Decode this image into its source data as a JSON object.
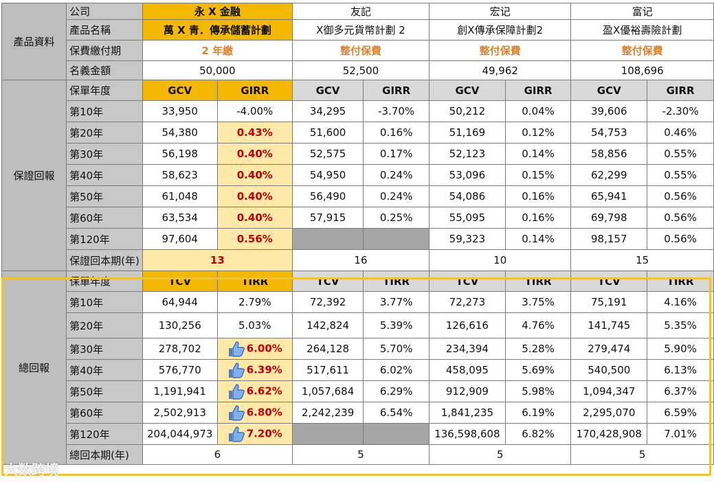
{
  "section_product": "產品資料",
  "section_guaranteed": "保證回報",
  "section_total": "總回報",
  "labels": {
    "company": "公司",
    "product_name": "產品名稱",
    "payment_term": "保費繳付期",
    "notional_amount": "名義金額",
    "policy_year": "保單年度",
    "guaranteed_breakeven": "保證回本期(年)",
    "total_breakeven": "總回本期(年)"
  },
  "companies": [
    {
      "company": "永 X 金融",
      "product": "萬 X 青．傳承儲蓄計劃",
      "payment": "2 年繳",
      "notional": "50,000",
      "g_breakeven": "13",
      "t_breakeven": "6"
    },
    {
      "company": "友記",
      "product": "X御多元貨幣計劃 2",
      "payment": "整付保費",
      "notional": "52,500",
      "g_breakeven": "16",
      "t_breakeven": "5"
    },
    {
      "company": "宏记",
      "product": "創X傳承保障計劃2",
      "payment": "整付保費",
      "notional": "49,962",
      "g_breakeven": "10",
      "t_breakeven": "5"
    },
    {
      "company": "富记",
      "product": "盈X優裕壽險計劃",
      "payment": "整付保費",
      "notional": "108,696",
      "g_breakeven": "15",
      "t_breakeven": "5"
    }
  ],
  "gcv_header": "GCV",
  "girr_header": "GIRR",
  "tcv_header": "TCV",
  "tirr_header": "TIRR",
  "years": [
    "第10年",
    "第20年",
    "第30年",
    "第40年",
    "第50年",
    "第60年",
    "第120年"
  ],
  "guaranteed": [
    [
      [
        "33,950",
        "-4.00%"
      ],
      [
        "54,380",
        "0.43%"
      ],
      [
        "56,198",
        "0.40%"
      ],
      [
        "58,623",
        "0.40%"
      ],
      [
        "61,048",
        "0.40%"
      ],
      [
        "63,534",
        "0.40%"
      ],
      [
        "97,604",
        "0.56%"
      ]
    ],
    [
      [
        "34,295",
        "-3.70%"
      ],
      [
        "51,600",
        "0.16%"
      ],
      [
        "52,575",
        "0.17%"
      ],
      [
        "54,950",
        "0.24%"
      ],
      [
        "56,490",
        "0.24%"
      ],
      [
        "57,915",
        "0.25%"
      ],
      [
        "",
        ""
      ]
    ],
    [
      [
        "50,212",
        "0.04%"
      ],
      [
        "51,169",
        "0.12%"
      ],
      [
        "52,123",
        "0.14%"
      ],
      [
        "53,096",
        "0.15%"
      ],
      [
        "54,086",
        "0.16%"
      ],
      [
        "55,095",
        "0.16%"
      ],
      [
        "59,323",
        "0.14%"
      ]
    ],
    [
      [
        "39,606",
        "-2.30%"
      ],
      [
        "54,753",
        "0.46%"
      ],
      [
        "58,856",
        "0.55%"
      ],
      [
        "62,299",
        "0.55%"
      ],
      [
        "65,941",
        "0.56%"
      ],
      [
        "69,798",
        "0.56%"
      ],
      [
        "98,157",
        "0.56%"
      ]
    ]
  ],
  "total": [
    [
      [
        "64,944",
        "2.79%"
      ],
      [
        "130,256",
        "5.03%"
      ],
      [
        "278,702",
        "6.00%"
      ],
      [
        "576,770",
        "6.39%"
      ],
      [
        "1,191,941",
        "6.62%"
      ],
      [
        "2,502,913",
        "6.80%"
      ],
      [
        "204,044,973",
        "7.20%"
      ]
    ],
    [
      [
        "72,392",
        "3.77%"
      ],
      [
        "142,824",
        "5.39%"
      ],
      [
        "264,128",
        "5.70%"
      ],
      [
        "517,611",
        "6.02%"
      ],
      [
        "1,057,684",
        "6.29%"
      ],
      [
        "2,242,239",
        "6.54%"
      ],
      [
        "",
        ""
      ]
    ],
    [
      [
        "72,273",
        "3.75%"
      ],
      [
        "126,616",
        "4.76%"
      ],
      [
        "234,394",
        "5.28%"
      ],
      [
        "458,095",
        "5.69%"
      ],
      [
        "912,909",
        "5.98%"
      ],
      [
        "1,841,235",
        "6.19%"
      ],
      [
        "136,598,608",
        "6.82%"
      ]
    ],
    [
      [
        "75,191",
        "4.16%"
      ],
      [
        "141,745",
        "5.35%"
      ],
      [
        "279,474",
        "5.90%"
      ],
      [
        "540,500",
        "6.13%"
      ],
      [
        "1,094,347",
        "6.37%"
      ],
      [
        "2,295,070",
        "6.59%"
      ],
      [
        "170,428,908",
        "7.01%"
      ]
    ]
  ],
  "watermark": "大数跨境"
}
